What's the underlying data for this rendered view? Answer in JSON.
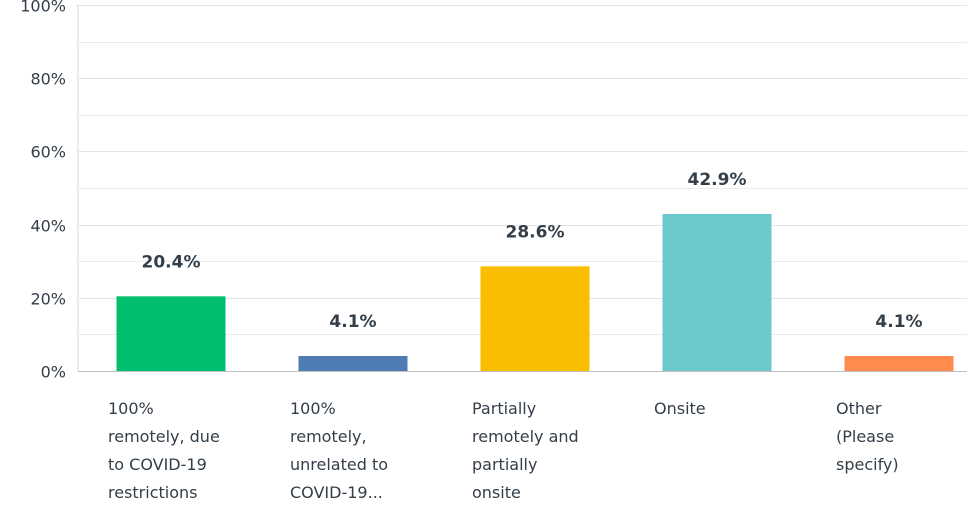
{
  "chart_data": {
    "type": "bar",
    "categories": [
      [
        "100%",
        "remotely, due",
        "to COVID-19",
        "restrictions"
      ],
      [
        "100%",
        "remotely,",
        "unrelated to",
        "COVID-19..."
      ],
      [
        "Partially",
        "remotely and",
        "partially",
        "onsite"
      ],
      [
        "Onsite"
      ],
      [
        "Other",
        "(Please",
        "specify)"
      ]
    ],
    "values": [
      20.4,
      4.1,
      28.6,
      42.9,
      4.1
    ],
    "value_labels": [
      "20.4%",
      "4.1%",
      "28.6%",
      "42.9%",
      "4.1%"
    ],
    "colors": [
      "#00bf6f",
      "#507cb6",
      "#f9be00",
      "#6bc8cd",
      "#ff8b4f"
    ],
    "yticks": [
      {
        "value": 0,
        "label": "0%"
      },
      {
        "value": 20,
        "label": "20%"
      },
      {
        "value": 40,
        "label": "40%"
      },
      {
        "value": 60,
        "label": "60%"
      },
      {
        "value": 80,
        "label": "80%"
      },
      {
        "value": 100,
        "label": "100%"
      }
    ],
    "ylim": [
      0,
      100
    ],
    "minor_gridlines": [
      10,
      30,
      50,
      70,
      90
    ],
    "grid": true,
    "title": "",
    "xlabel": "",
    "ylabel": ""
  }
}
